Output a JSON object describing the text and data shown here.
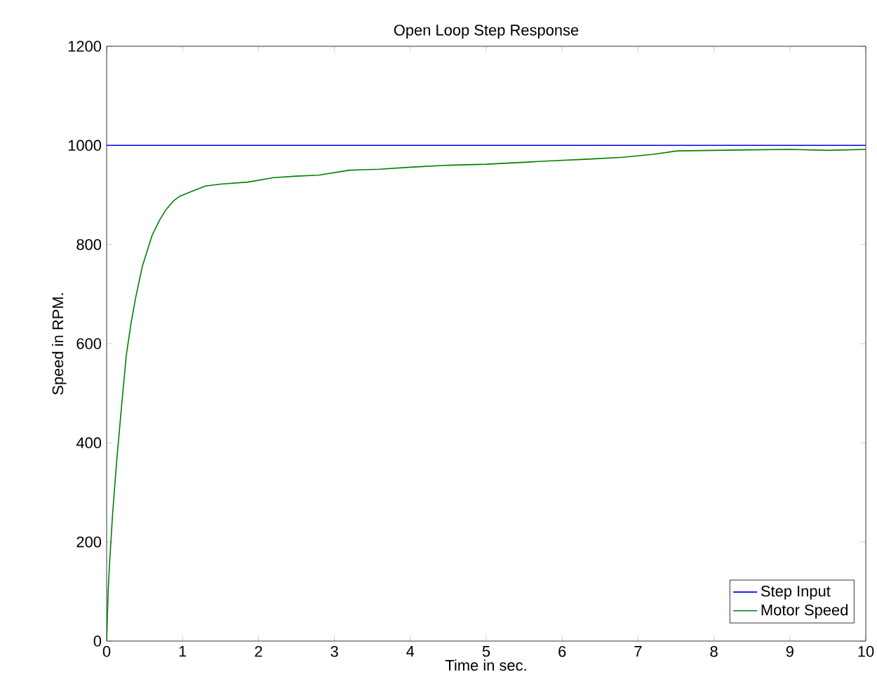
{
  "chart_data": {
    "type": "line",
    "title": "Open Loop Step Response",
    "xlabel": "Time in sec.",
    "ylabel": "Speed in RPM.",
    "xlim": [
      0,
      10
    ],
    "ylim": [
      0,
      1200
    ],
    "xticks": [
      0,
      1,
      2,
      3,
      4,
      5,
      6,
      7,
      8,
      9,
      10
    ],
    "yticks": [
      0,
      200,
      400,
      600,
      800,
      1000,
      1200
    ],
    "grid": false,
    "legend": "bottom right",
    "series": [
      {
        "name": "Step  Input",
        "color": "#0000ff",
        "x": [
          0,
          10
        ],
        "values": [
          1000,
          1000
        ]
      },
      {
        "name": "Motor Speed",
        "color": "#008000",
        "x": [
          0,
          0.02,
          0.04,
          0.08,
          0.135,
          0.2,
          0.26,
          0.32,
          0.38,
          0.47,
          0.54,
          0.6,
          0.7,
          0.78,
          0.88,
          0.97,
          1.1,
          1.3,
          1.5,
          1.86,
          2.2,
          2.5,
          2.79,
          3.2,
          3.6,
          4.0,
          4.5,
          5.0,
          5.5,
          5.86,
          6.3,
          6.8,
          7.2,
          7.52,
          8.0,
          8.5,
          9.0,
          9.5,
          10
        ],
        "values": [
          0,
          100,
          161,
          260,
          368,
          480,
          578,
          640,
          691,
          756,
          790,
          819,
          850,
          870,
          888,
          898,
          906,
          918,
          922,
          926,
          935,
          938,
          940,
          950,
          952,
          956,
          960,
          962,
          966,
          969,
          972,
          976,
          982,
          989,
          990,
          991,
          992,
          990,
          992
        ]
      }
    ]
  }
}
